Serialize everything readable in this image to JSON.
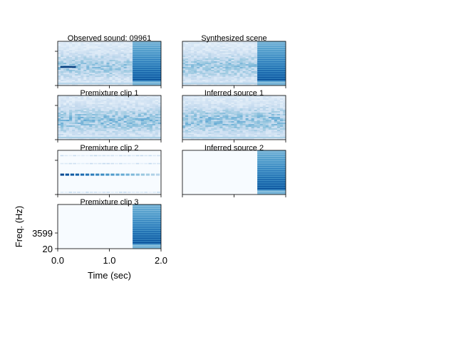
{
  "chart_data": {
    "type": "heatmap",
    "colormap": "Blues",
    "colors": {
      "low": "#f7fbff",
      "mid": "#6baed6",
      "high": "#08306b"
    },
    "panels": [
      {
        "id": "observed",
        "title": "Observed sound: 09961",
        "layers": [
          {
            "kind": "broadband",
            "t": [
              0.0,
              2.0
            ],
            "level": 0.38
          },
          {
            "kind": "tone",
            "t": [
              0.05,
              0.35
            ],
            "f_frac": 0.58,
            "level": 0.95
          },
          {
            "kind": "harmonic_block",
            "t": [
              1.45,
              2.0
            ],
            "level": 0.95
          }
        ]
      },
      {
        "id": "synthesized",
        "title": "Synthesized scene",
        "layers": [
          {
            "kind": "broadband",
            "t": [
              0.0,
              2.0
            ],
            "level": 0.38
          },
          {
            "kind": "harmonic_block",
            "t": [
              1.45,
              2.0
            ],
            "level": 0.95
          }
        ]
      },
      {
        "id": "premix1",
        "title": "Premixture clip 1",
        "layers": [
          {
            "kind": "broadband",
            "t": [
              0.0,
              2.0
            ],
            "level": 0.42
          }
        ]
      },
      {
        "id": "source1",
        "title": "Inferred source 1",
        "layers": [
          {
            "kind": "broadband",
            "t": [
              0.0,
              2.0
            ],
            "level": 0.42
          }
        ]
      },
      {
        "id": "premix2",
        "title": "Premixture clip 2",
        "layers": [
          {
            "kind": "tone_train",
            "t": [
              0.05,
              2.0
            ],
            "f_frac": 0.55,
            "level": 0.9
          },
          {
            "kind": "faint_lines",
            "t": [
              0.05,
              2.0
            ],
            "level": 0.18
          }
        ]
      },
      {
        "id": "source2",
        "title": "Inferred source 2",
        "layers": [
          {
            "kind": "harmonic_block",
            "t": [
              1.45,
              2.0
            ],
            "level": 0.95
          }
        ]
      },
      {
        "id": "premix3",
        "title": "Premixture clip 3",
        "layers": [
          {
            "kind": "harmonic_block",
            "t": [
              1.45,
              2.0
            ],
            "level": 0.95
          }
        ]
      }
    ],
    "xlabel": "Time (sec)",
    "ylabel": "Freq. (Hz)",
    "x_ticks": [
      "0.0",
      "1.0",
      "2.0"
    ],
    "x_tick_values": [
      0.0,
      1.0,
      2.0
    ],
    "xlim": [
      0.0,
      2.0
    ],
    "y_ticks": [
      "20",
      "3599"
    ],
    "y_tick_values": [
      20,
      3599
    ],
    "ylim_hz": [
      20,
      8000
    ]
  }
}
